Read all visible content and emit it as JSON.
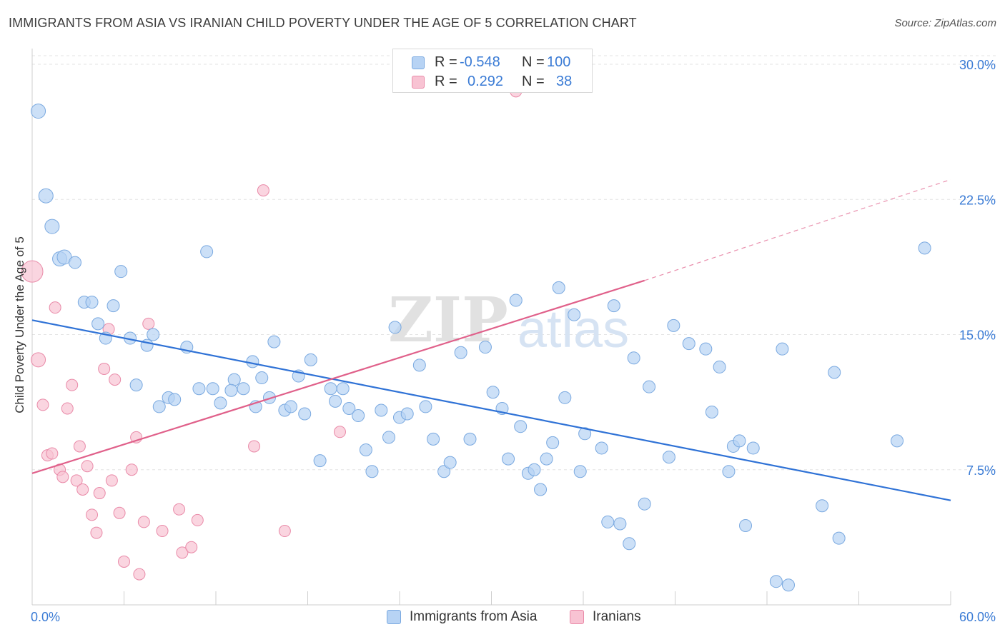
{
  "title": "IMMIGRANTS FROM ASIA VS IRANIAN CHILD POVERTY UNDER THE AGE OF 5 CORRELATION CHART",
  "source": "Source: ZipAtlas.com",
  "watermark": {
    "bold": "ZIP",
    "light": "atlas"
  },
  "legend": {
    "r_label": "R =",
    "n_label": "N =",
    "rows": [
      {
        "r": "-0.548",
        "n": "100"
      },
      {
        "r": "0.292",
        "n": "38"
      }
    ]
  },
  "colors": {
    "blue_fill": "#b7d3f4",
    "blue_stroke": "#7aa9e0",
    "blue_line": "#2f72d6",
    "pink_fill": "#f8c3d3",
    "pink_stroke": "#e98aa8",
    "pink_line": "#e0608a",
    "axis_text": "#3a7bd5"
  },
  "chart_data": {
    "type": "scatter",
    "title": "IMMIGRANTS FROM ASIA VS IRANIAN CHILD POVERTY UNDER THE AGE OF 5 CORRELATION CHART",
    "xlabel": "",
    "ylabel": "Child Poverty Under the Age of 5",
    "xlim": [
      0,
      60
    ],
    "ylim": [
      0,
      30
    ],
    "x_tick_labels": [
      "0.0%",
      "60.0%"
    ],
    "y_ticks": [
      7.5,
      15.0,
      22.5,
      30.0
    ],
    "y_tick_labels": [
      "7.5%",
      "15.0%",
      "22.5%",
      "30.0%"
    ],
    "grid": "horizontal dashed",
    "legend_position": "top-center",
    "series": [
      {
        "name": "Immigrants from Asia",
        "r": -0.548,
        "n": 100,
        "trend": {
          "x0": 0,
          "y0": 15.8,
          "x1": 60,
          "y1": 5.8
        },
        "points": [
          [
            0.4,
            27.4
          ],
          [
            0.9,
            22.7
          ],
          [
            1.3,
            21.0
          ],
          [
            1.8,
            19.2
          ],
          [
            2.1,
            19.3
          ],
          [
            2.8,
            19.0
          ],
          [
            3.4,
            16.8
          ],
          [
            3.9,
            16.8
          ],
          [
            5.3,
            16.6
          ],
          [
            4.3,
            15.6
          ],
          [
            4.8,
            14.8
          ],
          [
            5.8,
            18.5
          ],
          [
            6.4,
            14.8
          ],
          [
            6.8,
            12.2
          ],
          [
            7.5,
            14.4
          ],
          [
            7.9,
            15.0
          ],
          [
            8.3,
            11.0
          ],
          [
            8.9,
            11.5
          ],
          [
            9.3,
            11.4
          ],
          [
            10.1,
            14.3
          ],
          [
            10.9,
            12.0
          ],
          [
            11.4,
            19.6
          ],
          [
            11.8,
            12.0
          ],
          [
            12.3,
            11.2
          ],
          [
            13.2,
            12.5
          ],
          [
            13.0,
            11.9
          ],
          [
            13.8,
            12.0
          ],
          [
            14.6,
            11.0
          ],
          [
            14.4,
            13.5
          ],
          [
            15.0,
            12.6
          ],
          [
            15.5,
            11.5
          ],
          [
            15.8,
            14.6
          ],
          [
            16.5,
            10.8
          ],
          [
            16.9,
            11.0
          ],
          [
            17.4,
            12.7
          ],
          [
            17.8,
            10.6
          ],
          [
            18.2,
            13.6
          ],
          [
            18.8,
            8.0
          ],
          [
            19.5,
            12.0
          ],
          [
            19.8,
            11.3
          ],
          [
            20.3,
            12.0
          ],
          [
            20.7,
            10.9
          ],
          [
            21.3,
            10.5
          ],
          [
            21.8,
            8.6
          ],
          [
            22.2,
            7.4
          ],
          [
            22.8,
            10.8
          ],
          [
            23.3,
            9.3
          ],
          [
            23.7,
            15.4
          ],
          [
            24.0,
            10.4
          ],
          [
            24.5,
            10.6
          ],
          [
            25.3,
            13.3
          ],
          [
            25.7,
            11.0
          ],
          [
            26.2,
            9.2
          ],
          [
            26.9,
            7.4
          ],
          [
            27.3,
            7.9
          ],
          [
            28.0,
            14.0
          ],
          [
            28.6,
            9.2
          ],
          [
            29.6,
            14.3
          ],
          [
            30.1,
            11.8
          ],
          [
            30.7,
            10.9
          ],
          [
            31.1,
            8.1
          ],
          [
            31.6,
            16.9
          ],
          [
            31.9,
            9.9
          ],
          [
            32.4,
            7.3
          ],
          [
            32.8,
            7.5
          ],
          [
            33.2,
            6.4
          ],
          [
            33.6,
            8.1
          ],
          [
            34.0,
            9.0
          ],
          [
            34.4,
            17.6
          ],
          [
            34.8,
            11.5
          ],
          [
            35.4,
            16.1
          ],
          [
            35.8,
            7.4
          ],
          [
            36.1,
            9.5
          ],
          [
            37.2,
            8.7
          ],
          [
            37.6,
            4.6
          ],
          [
            38.0,
            16.6
          ],
          [
            38.4,
            4.5
          ],
          [
            39.0,
            3.4
          ],
          [
            39.3,
            13.7
          ],
          [
            40.0,
            5.6
          ],
          [
            40.3,
            12.1
          ],
          [
            41.6,
            8.2
          ],
          [
            41.9,
            15.5
          ],
          [
            42.9,
            14.5
          ],
          [
            44.0,
            14.2
          ],
          [
            44.4,
            10.7
          ],
          [
            44.9,
            13.2
          ],
          [
            45.5,
            7.4
          ],
          [
            45.8,
            8.8
          ],
          [
            46.2,
            9.1
          ],
          [
            46.6,
            4.4
          ],
          [
            47.1,
            8.7
          ],
          [
            48.6,
            1.3
          ],
          [
            49.4,
            1.1
          ],
          [
            51.6,
            5.5
          ],
          [
            52.4,
            12.9
          ],
          [
            52.7,
            3.7
          ],
          [
            56.5,
            9.1
          ],
          [
            58.3,
            19.8
          ],
          [
            49.0,
            14.2
          ]
        ]
      },
      {
        "name": "Iranians",
        "r": 0.292,
        "n": 38,
        "trend": {
          "x0": 0,
          "y0": 7.3,
          "x1": 40,
          "y1": 18.0,
          "dash_to_x": 60,
          "dash_to_y": 23.6
        },
        "points": [
          [
            0.0,
            18.5
          ],
          [
            0.4,
            13.6
          ],
          [
            0.7,
            11.1
          ],
          [
            1.0,
            8.3
          ],
          [
            1.3,
            8.4
          ],
          [
            1.5,
            16.5
          ],
          [
            1.8,
            7.5
          ],
          [
            2.0,
            7.1
          ],
          [
            2.3,
            10.9
          ],
          [
            2.6,
            12.2
          ],
          [
            2.9,
            6.9
          ],
          [
            3.1,
            8.8
          ],
          [
            3.3,
            6.4
          ],
          [
            3.6,
            7.7
          ],
          [
            3.9,
            5.0
          ],
          [
            4.2,
            4.0
          ],
          [
            4.4,
            6.2
          ],
          [
            4.7,
            13.1
          ],
          [
            5.0,
            15.3
          ],
          [
            5.2,
            6.9
          ],
          [
            5.4,
            12.5
          ],
          [
            5.7,
            5.1
          ],
          [
            6.0,
            2.4
          ],
          [
            6.5,
            7.5
          ],
          [
            6.8,
            9.3
          ],
          [
            7.0,
            1.7
          ],
          [
            7.3,
            4.6
          ],
          [
            7.6,
            15.6
          ],
          [
            8.5,
            4.1
          ],
          [
            9.6,
            5.3
          ],
          [
            9.8,
            2.9
          ],
          [
            10.4,
            3.2
          ],
          [
            10.8,
            4.7
          ],
          [
            14.5,
            8.8
          ],
          [
            15.1,
            23.0
          ],
          [
            16.5,
            4.1
          ],
          [
            20.1,
            9.6
          ],
          [
            31.6,
            28.5
          ]
        ]
      }
    ]
  },
  "bottom_legend": [
    {
      "label": "Immigrants from Asia"
    },
    {
      "label": "Iranians"
    }
  ]
}
